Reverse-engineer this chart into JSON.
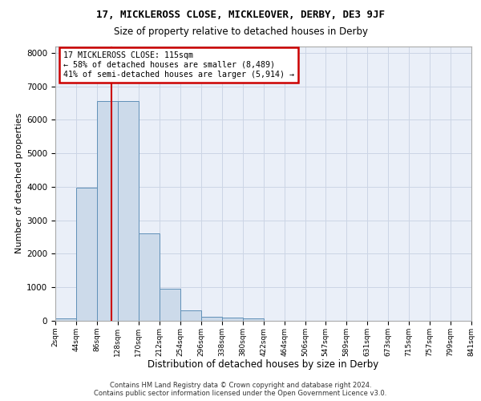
{
  "title_line1": "17, MICKLEROSS CLOSE, MICKLEOVER, DERBY, DE3 9JF",
  "title_line2": "Size of property relative to detached houses in Derby",
  "xlabel": "Distribution of detached houses by size in Derby",
  "ylabel": "Number of detached properties",
  "footer_line1": "Contains HM Land Registry data © Crown copyright and database right 2024.",
  "footer_line2": "Contains public sector information licensed under the Open Government Licence v3.0.",
  "annotation_line1": "17 MICKLEROSS CLOSE: 115sqm",
  "annotation_line2": "← 58% of detached houses are smaller (8,489)",
  "annotation_line3": "41% of semi-detached houses are larger (5,914) →",
  "bar_edges": [
    2,
    44,
    86,
    128,
    170,
    212,
    254,
    296,
    338,
    380,
    422,
    464,
    506,
    547,
    589,
    631,
    673,
    715,
    757,
    799,
    841
  ],
  "bar_heights": [
    80,
    3980,
    6570,
    6560,
    2620,
    950,
    305,
    120,
    100,
    80,
    0,
    0,
    0,
    0,
    0,
    0,
    0,
    0,
    0,
    0
  ],
  "bar_color": "#ccdaea",
  "bar_edge_color": "#6090b8",
  "grid_color": "#ccd5e5",
  "bg_color": "#eaeff8",
  "vline_x": 115,
  "vline_color": "#cc0000",
  "annotation_box_color": "#cc0000",
  "ylim": [
    0,
    8200
  ],
  "yticks": [
    0,
    1000,
    2000,
    3000,
    4000,
    5000,
    6000,
    7000,
    8000
  ],
  "tick_labels": [
    "2sqm",
    "44sqm",
    "86sqm",
    "128sqm",
    "170sqm",
    "212sqm",
    "254sqm",
    "296sqm",
    "338sqm",
    "380sqm",
    "422sqm",
    "464sqm",
    "506sqm",
    "547sqm",
    "589sqm",
    "631sqm",
    "673sqm",
    "715sqm",
    "757sqm",
    "799sqm",
    "841sqm"
  ]
}
